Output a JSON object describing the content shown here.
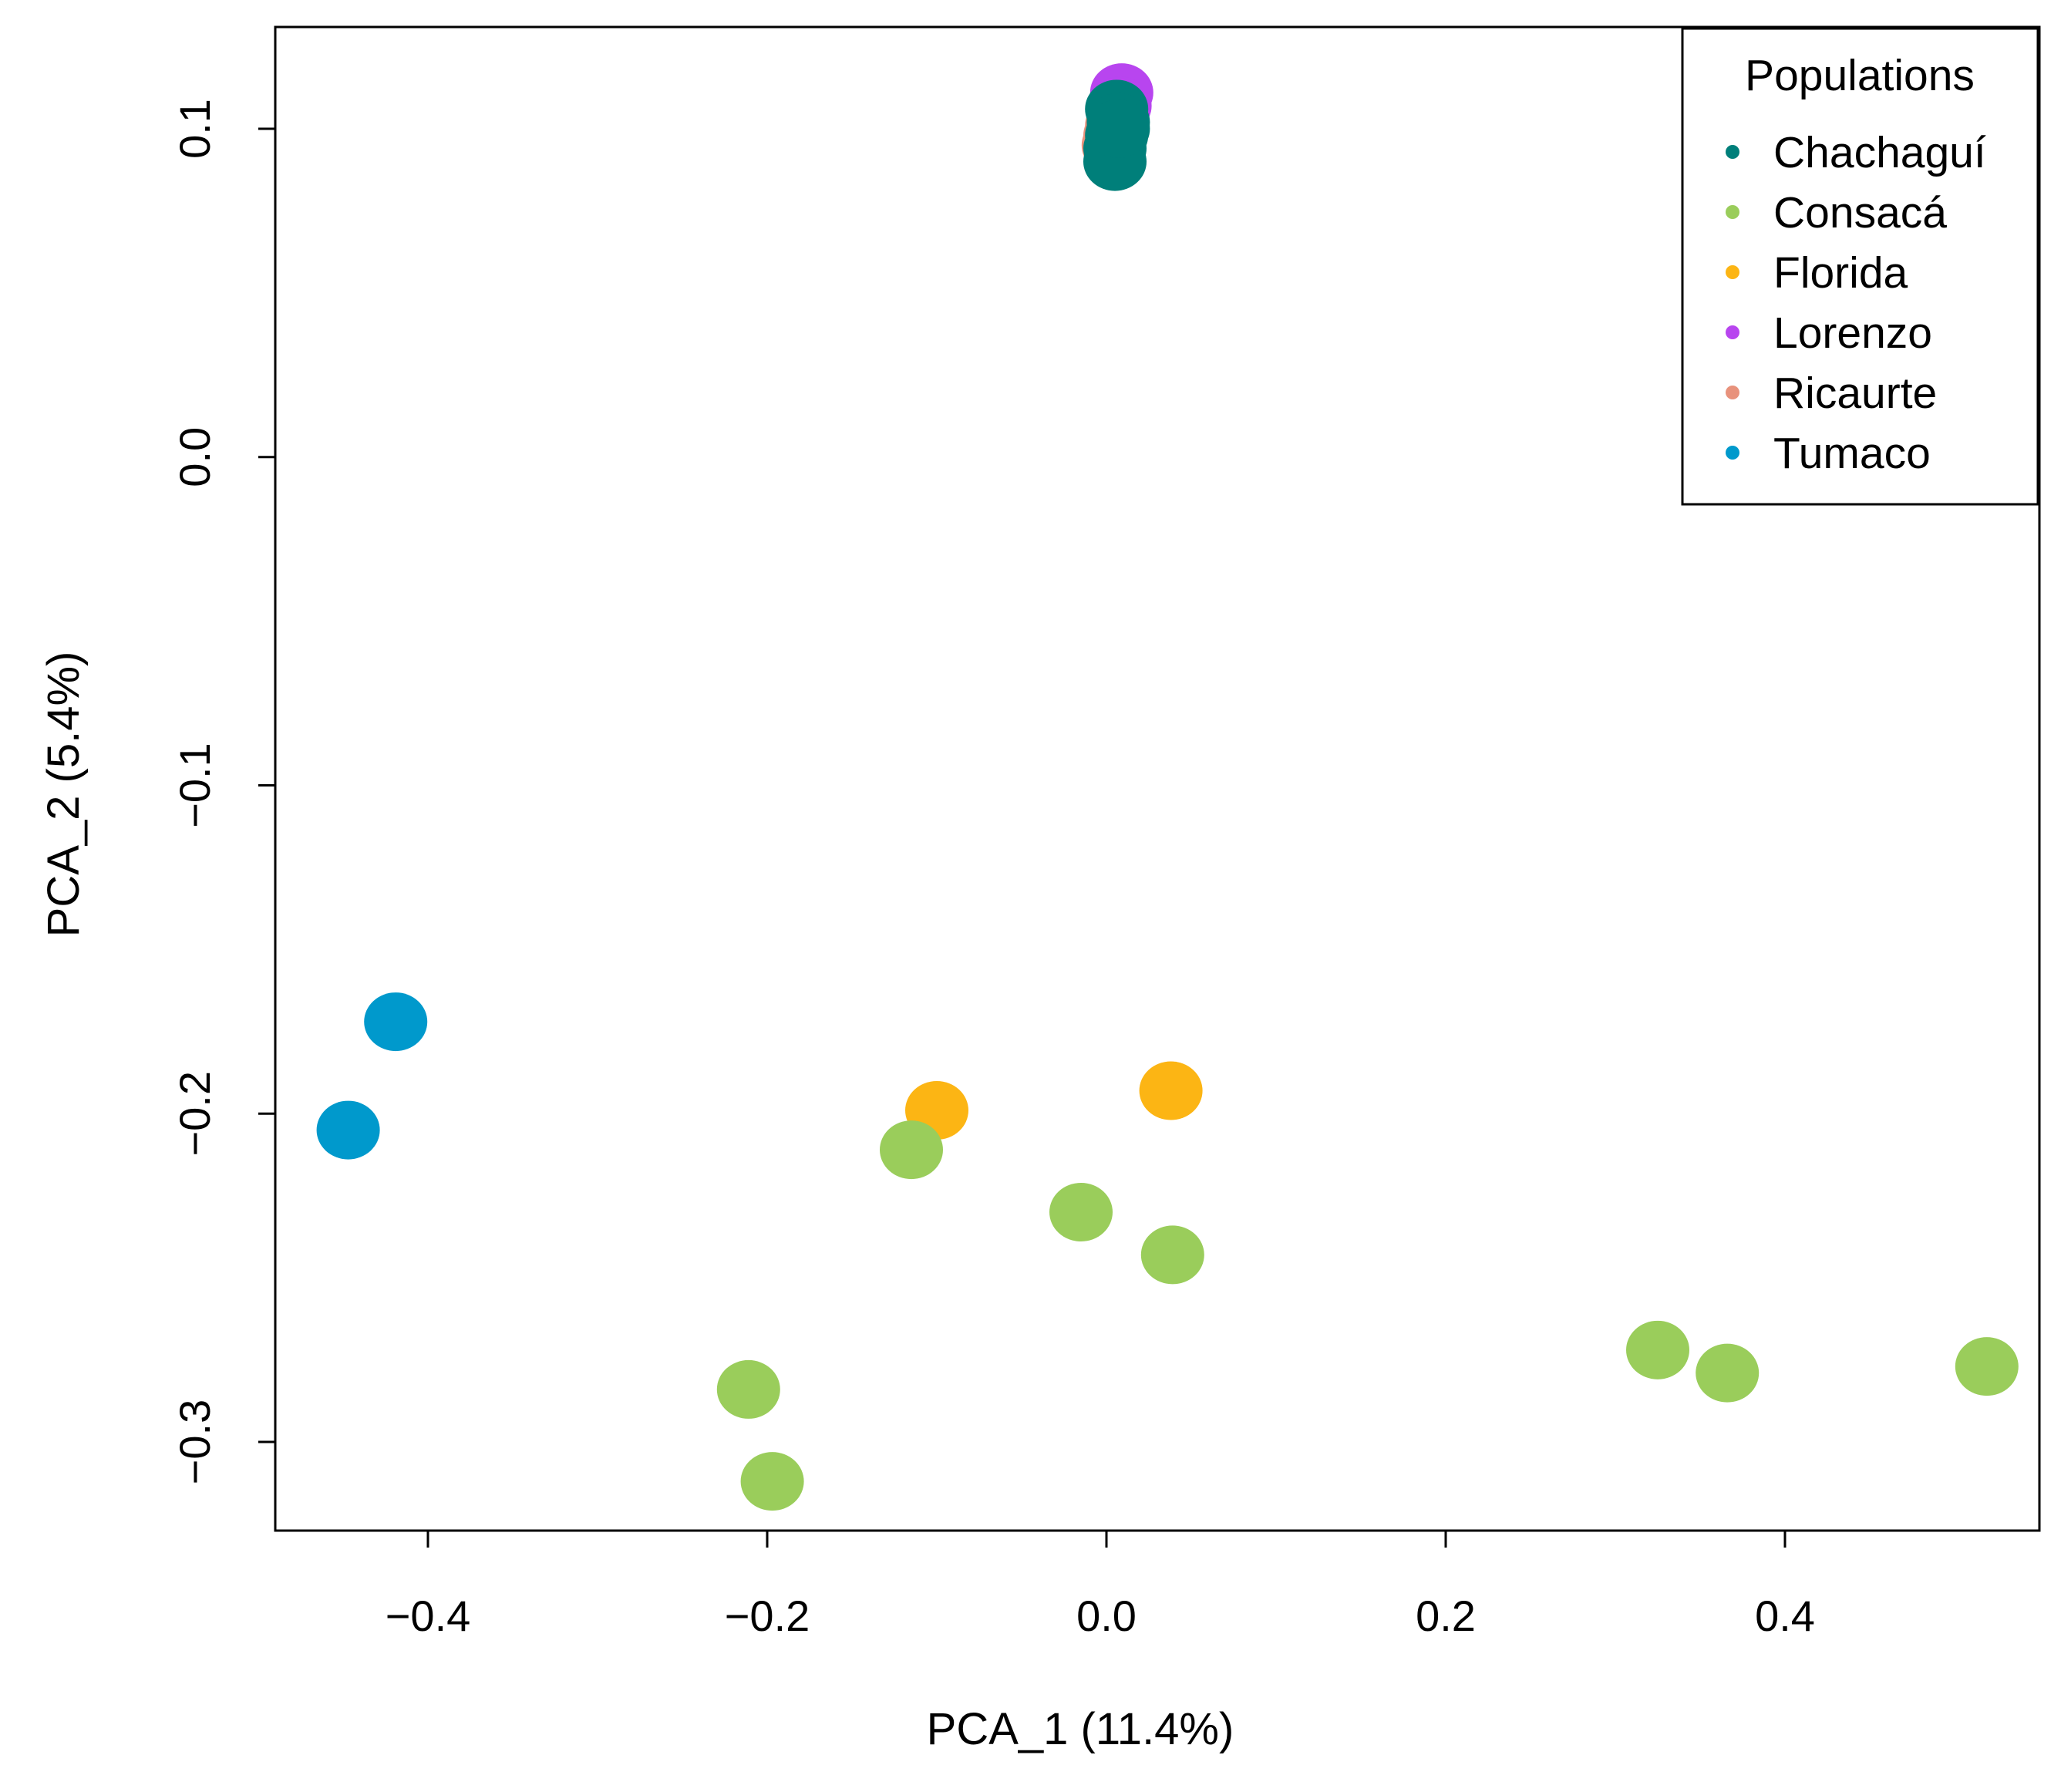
{
  "chart_data": {
    "type": "scatter",
    "title": "",
    "xlabel": "PCA_1 (11.4%)",
    "ylabel": "PCA_2 (5.4%)",
    "xlim": [
      -0.49,
      0.55
    ],
    "ylim": [
      -0.327,
      0.131
    ],
    "xticks": [
      {
        "value": -0.4,
        "label": "−0.4"
      },
      {
        "value": -0.2,
        "label": "−0.2"
      },
      {
        "value": 0.0,
        "label": "0.0"
      },
      {
        "value": 0.2,
        "label": "0.2"
      },
      {
        "value": 0.4,
        "label": "0.4"
      }
    ],
    "yticks": [
      {
        "value": 0.1,
        "label": "0.1"
      },
      {
        "value": 0.0,
        "label": "0.0"
      },
      {
        "value": -0.1,
        "label": "−0.1"
      },
      {
        "value": -0.2,
        "label": "−0.2"
      },
      {
        "value": -0.3,
        "label": "−0.3"
      }
    ],
    "grid": false,
    "legend": {
      "title": "Populations",
      "position": "top-right"
    },
    "series": [
      {
        "name": "Ricaurte",
        "color": "#e8927c",
        "points": [
          {
            "x": 0.005,
            "y": 0.098
          },
          {
            "x": 0.004,
            "y": 0.095
          },
          {
            "x": 0.006,
            "y": 0.101
          }
        ]
      },
      {
        "name": "Lorenzo",
        "color": "#b845ef",
        "points": [
          {
            "x": 0.009,
            "y": 0.111
          },
          {
            "x": 0.008,
            "y": 0.107
          }
        ]
      },
      {
        "name": "Florida",
        "color": "#fcb514",
        "points": [
          {
            "x": -0.1,
            "y": -0.199
          },
          {
            "x": 0.038,
            "y": -0.193
          }
        ]
      },
      {
        "name": "Tumaco",
        "color": "#0099cc",
        "points": [
          {
            "x": -0.447,
            "y": -0.205
          },
          {
            "x": -0.419,
            "y": -0.172
          }
        ]
      },
      {
        "name": "Consacá",
        "color": "#9acd5b",
        "points": [
          {
            "x": -0.115,
            "y": -0.211
          },
          {
            "x": -0.015,
            "y": -0.23
          },
          {
            "x": 0.039,
            "y": -0.243
          },
          {
            "x": -0.211,
            "y": -0.284
          },
          {
            "x": -0.197,
            "y": -0.312
          },
          {
            "x": 0.325,
            "y": -0.272
          },
          {
            "x": 0.366,
            "y": -0.279
          },
          {
            "x": 0.519,
            "y": -0.277
          }
        ]
      },
      {
        "name": "Chachaguí",
        "color": "#007f7a",
        "points": [
          {
            "x": 0.006,
            "y": 0.106
          },
          {
            "x": 0.007,
            "y": 0.102
          },
          {
            "x": 0.006,
            "y": 0.098
          },
          {
            "x": 0.005,
            "y": 0.094
          },
          {
            "x": 0.005,
            "y": 0.09
          },
          {
            "x": 0.007,
            "y": 0.1
          }
        ]
      }
    ],
    "legend_order": [
      "Chachaguí",
      "Consacá",
      "Florida",
      "Lorenzo",
      "Ricaurte",
      "Tumaco"
    ]
  }
}
